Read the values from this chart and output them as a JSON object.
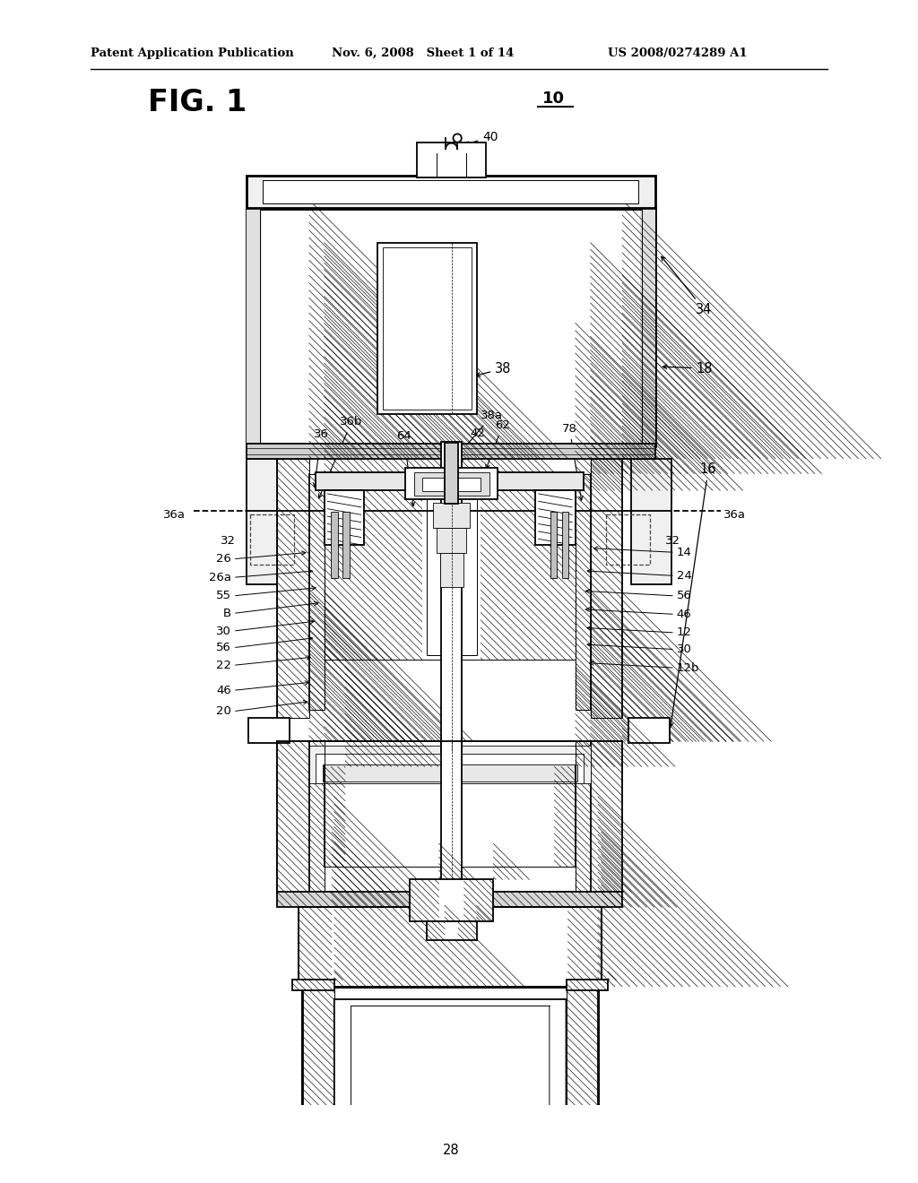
{
  "background": "#ffffff",
  "lc": "#000000",
  "header_left": "Patent Application Publication",
  "header_mid": "Nov. 6, 2008   Sheet 1 of 14",
  "header_right": "US 2008/0274289 A1",
  "fig_label": "FIG. 1",
  "fig_number": "10",
  "lw_thick": 2.0,
  "lw_med": 1.3,
  "lw_thin": 0.7,
  "lw_hatch": 0.45
}
